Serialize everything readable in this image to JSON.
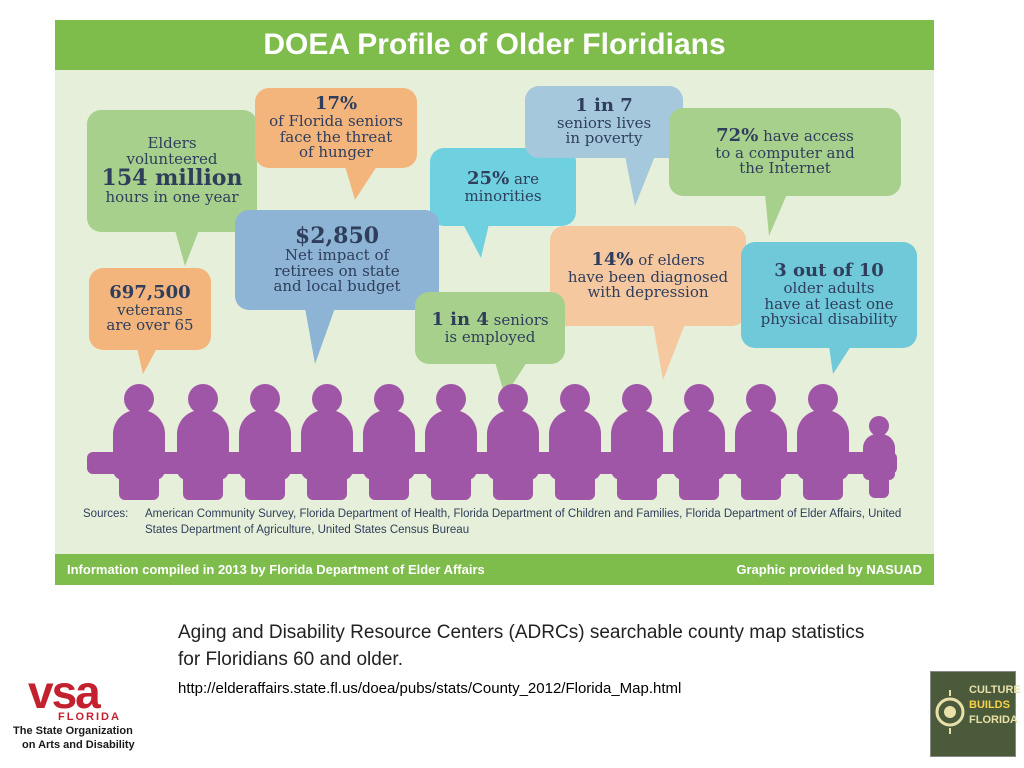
{
  "infographic": {
    "title": "DOEA Profile of Older Floridians",
    "bubbles": {
      "volunteer": {
        "line1": "Elders",
        "line2": "volunteered",
        "big": "154 million",
        "line3": "hours in one year"
      },
      "hunger": {
        "big": "17%",
        "line1": "of Florida seniors",
        "line2": "face the threat",
        "line3": "of hunger"
      },
      "minorities": {
        "big": "25%",
        "rest": "are",
        "line2": "minorities"
      },
      "poverty": {
        "big": "1 in 7",
        "line1": "seniors lives",
        "line2": "in poverty"
      },
      "computer": {
        "big": "72%",
        "rest": "have access",
        "line2": "to a computer and",
        "line3": "the Internet"
      },
      "budget": {
        "big": "$2,850",
        "line1": "Net impact of",
        "line2": "retirees on state",
        "line3": "and local budget"
      },
      "depression": {
        "big": "14%",
        "rest": "of elders",
        "line2": "have been diagnosed",
        "line3": "with depression"
      },
      "veterans": {
        "big": "697,500",
        "line1": "veterans",
        "line2": "are over 65"
      },
      "employed": {
        "big": "1 in 4",
        "rest": "seniors",
        "line2": "is employed"
      },
      "disability": {
        "big": "3 out of 10",
        "line1": "older adults",
        "line2": "have at least one",
        "line3": "physical disability"
      }
    },
    "sources_label": "Sources:",
    "sources_text": "American Community Survey, Florida Department of Health, Florida Department of Children and Families, Florida Department of Elder Affairs, United States Department of Agriculture, United States Census Bureau",
    "footer_left": "Information compiled in 2013 by Florida Department of Elder Affairs",
    "footer_right": "Graphic provided by NASUAD"
  },
  "caption": "Aging and Disability Resource Centers (ADRCs) searchable county map statistics for Floridians 60 and older.",
  "url": "http://elderaffairs.state.fl.us/doea/pubs/stats/County_2012/Florida_Map.html",
  "vsa": {
    "wordmark": "vsa",
    "state": "FLORIDA",
    "tag1": "The State Organization",
    "tag2": "on Arts and Disability"
  },
  "cbf": {
    "line1": "CULTURE",
    "line2": "BUILDS",
    "line3": "FLORIDA"
  },
  "colors": {
    "green": "#7ebc4b",
    "purple": "#a056a6",
    "vsa_red": "#c4212e"
  }
}
